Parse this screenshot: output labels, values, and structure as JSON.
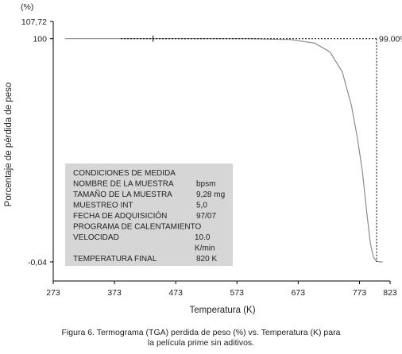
{
  "chart_data": {
    "type": "line",
    "xlabel": "Temperatura (K)",
    "ylabel": "Porcentaje de pérdida de peso",
    "y_unit_label": "(%)",
    "xlim": [
      273,
      823
    ],
    "ylim": [
      -0.04,
      107.72
    ],
    "x_ticks": [
      273,
      373,
      473,
      573,
      673,
      773,
      823
    ],
    "x_tick_labels": [
      "273",
      "373",
      "473",
      "573",
      "673",
      "773",
      "823"
    ],
    "y_ticks": [
      107.72,
      100,
      -0.04
    ],
    "y_tick_labels": [
      "107,72",
      "100",
      "-0,04"
    ],
    "series": [
      {
        "points": [
          [
            292,
            100
          ],
          [
            590,
            100
          ],
          [
            660,
            99.6
          ],
          [
            700,
            98
          ],
          [
            725,
            94
          ],
          [
            745,
            85
          ],
          [
            760,
            70
          ],
          [
            770,
            55
          ],
          [
            778,
            40
          ],
          [
            785,
            22
          ],
          [
            791,
            8
          ],
          [
            796,
            2
          ],
          [
            801,
            0.2
          ],
          [
            808,
            -0.04
          ],
          [
            810,
            -0.04
          ],
          [
            811,
            -0.04
          ]
        ]
      }
    ],
    "annotations": {
      "endpoint_label": "99.00%",
      "marker_x": 436,
      "marker_y": 100,
      "vertical_dashed_x": 801
    },
    "info_box": {
      "rows": [
        {
          "label": "CONDICIONES DE MEDIDA",
          "value": ""
        },
        {
          "label": "NOMBRE DE LA MUESTRA",
          "value": "bpsm"
        },
        {
          "label": "TAMAÑO DE LA MUESTRA",
          "value": "9,28 mg"
        },
        {
          "label": "MUESTREO INT",
          "value": "5,0"
        },
        {
          "label": "FECHA DE ADQUISICIÓN",
          "value": "97/07"
        },
        {
          "label": "PROGRAMA DE CALENTAMIENTO",
          "value": ""
        },
        {
          "label": "VELOCIDAD",
          "value": "10.0"
        },
        {
          "label": "",
          "value": "K/min"
        },
        {
          "label": "TEMPERATURA FINAL",
          "value": "820 K"
        }
      ]
    }
  },
  "caption": {
    "line1": "Figura 6. Termograma (TGA) perdida de peso (%) vs. Temperatura (K) para",
    "line2": "la película  prime sin aditivos."
  }
}
